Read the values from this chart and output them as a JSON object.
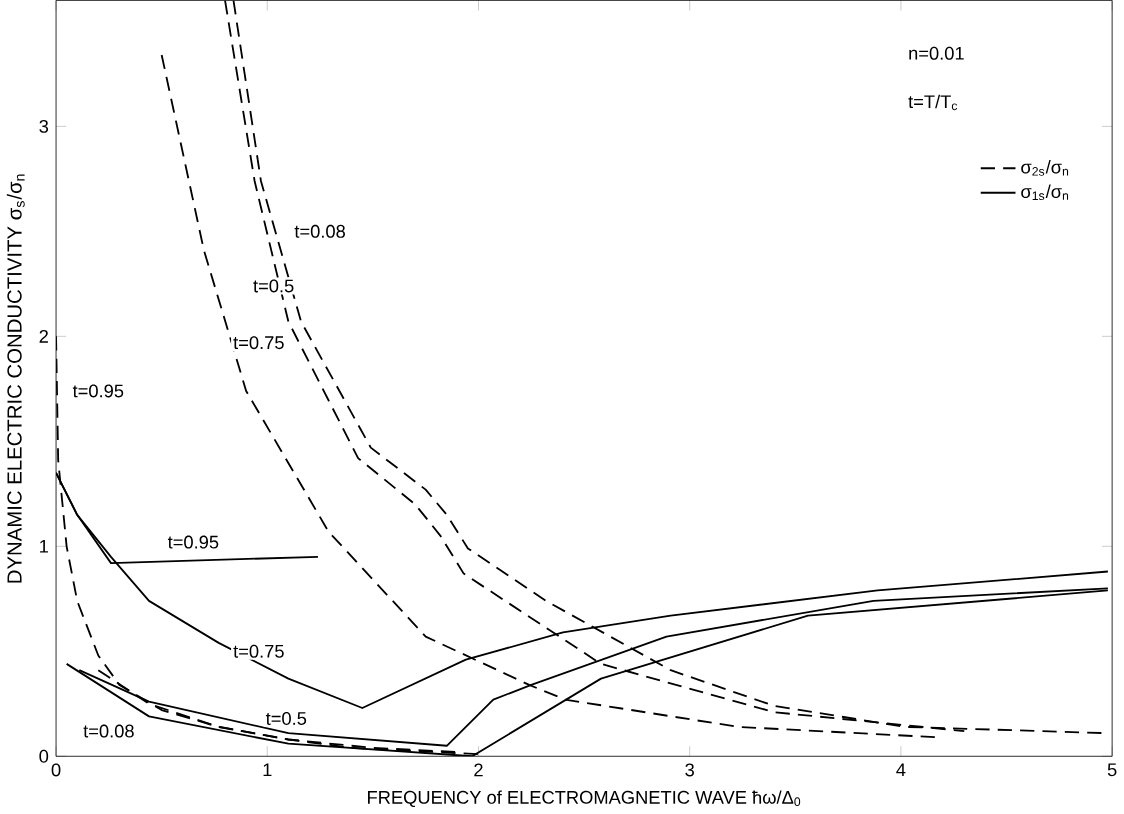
{
  "chart_data": {
    "type": "line",
    "xlabel": "FREQUENCY of ELECTROMAGNETIC WAVE ħω/Δ$_{0}$",
    "ylabel": "DYNAMIC ELECTRIC CONDUCTIVITY σ$_{s}$/σ$_{n}$",
    "xlim": [
      0,
      5
    ],
    "ylim": [
      0,
      3.6
    ],
    "xticks": [
      0,
      1,
      2,
      3,
      4,
      5
    ],
    "yticks": [
      0,
      1,
      2,
      3
    ],
    "legend": "top right",
    "marker": "none",
    "grid": false,
    "series": [
      {
        "name": "σ$_{2s}$/σ$_{n}$",
        "color": "#000000",
        "line_style": "dashed",
        "x": [
          0,
          0.01,
          0.05,
          0.1,
          0.2,
          0.3,
          0.5,
          0.77,
          1.1,
          1.4,
          2.0
        ],
        "values": [
          2.0,
          1.41,
          1.0,
          0.74,
          0.48,
          0.34,
          0.22,
          0.14,
          0.08,
          0.04,
          0.01
        ]
      },
      {
        "color": "#000000",
        "line_style": "dashed",
        "x": [
          0.84,
          0.97,
          1.16,
          1.49,
          1.75,
          1.85,
          1.95,
          2.32,
          2.91,
          3.4,
          4.02,
          4.98
        ],
        "values": [
          3.6,
          2.74,
          2.07,
          1.47,
          1.27,
          1.15,
          0.99,
          0.74,
          0.41,
          0.24,
          0.14,
          0.11
        ]
      },
      {
        "color": "#000000",
        "line_style": "dashed",
        "x": [
          0.8,
          0.94,
          1.1,
          1.43,
          1.7,
          1.82,
          1.93,
          2.58,
          3.4,
          4.3
        ],
        "values": [
          3.6,
          2.74,
          2.07,
          1.42,
          1.2,
          1.05,
          0.87,
          0.44,
          0.21,
          0.12
        ]
      },
      {
        "color": "#000000",
        "line_style": "dashed",
        "x": [
          0.5,
          0.7,
          0.9,
          1.29,
          1.75,
          2.24,
          2.41,
          3.23,
          4.18
        ],
        "values": [
          3.34,
          2.41,
          1.74,
          1.07,
          0.57,
          0.34,
          0.27,
          0.14,
          0.09
        ]
      },
      {
        "color": "#000000",
        "line_style": "dashed",
        "x": [
          0.2,
          0.44,
          0.77,
          1.1,
          1.5,
          1.9
        ],
        "values": [
          0.41,
          0.25,
          0.14,
          0.08,
          0.04,
          0.02
        ]
      },
      {
        "name": "σ$_{1s}$/σ$_{n}$",
        "color": "#000000",
        "line_style": "solid",
        "x": [
          0,
          0.1,
          0.26,
          1.24
        ],
        "values": [
          1.35,
          1.15,
          0.92,
          0.95
        ]
      },
      {
        "color": "#000000",
        "line_style": "solid",
        "x": [
          0,
          0.1,
          0.26,
          0.44,
          0.77,
          1.1,
          1.45,
          1.94,
          2.4,
          2.91,
          3.89,
          4.98
        ],
        "values": [
          1.35,
          1.15,
          0.95,
          0.74,
          0.54,
          0.37,
          0.23,
          0.46,
          0.59,
          0.67,
          0.79,
          0.88
        ]
      },
      {
        "color": "#000000",
        "line_style": "solid",
        "x": [
          0.11,
          0.44,
          1.1,
          1.85,
          2.07,
          2.25,
          2.89,
          3.87,
          4.98
        ],
        "values": [
          0.41,
          0.26,
          0.11,
          0.05,
          0.27,
          0.34,
          0.57,
          0.74,
          0.8
        ]
      },
      {
        "color": "#000000",
        "line_style": "solid",
        "x": [
          0.05,
          0.44,
          1.1,
          1.97,
          2.58,
          3.56,
          4.98
        ],
        "values": [
          0.44,
          0.19,
          0.06,
          0.0,
          0.37,
          0.67,
          0.79
        ]
      }
    ],
    "annotations": [
      "n=0.01",
      "t=T/T$_{c}$",
      {
        "text": "t=0.08",
        "x": 1.25,
        "y": 2.5
      },
      {
        "text": "t=0.5",
        "x": 1.03,
        "y": 2.24
      },
      {
        "text": "t=0.75",
        "x": 0.96,
        "y": 1.97
      },
      {
        "text": "t=0.95",
        "x": 0.2,
        "y": 1.74
      },
      {
        "text": "t=0.95",
        "x": 0.65,
        "y": 1.02
      },
      {
        "text": "t=0.75",
        "x": 0.96,
        "y": 0.5
      },
      {
        "text": "t=0.5",
        "x": 1.09,
        "y": 0.18
      },
      {
        "text": "t=0.08",
        "x": 0.25,
        "y": 0.12
      }
    ]
  }
}
